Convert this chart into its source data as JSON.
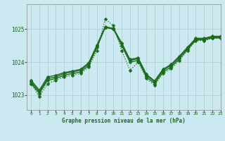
{
  "title": "Graphe pression niveau de la mer (hPa)",
  "bg_color": "#cce8f0",
  "grid_color": "#aacccc",
  "line_color": "#1a6b1a",
  "xlim": [
    -0.5,
    23
  ],
  "ylim": [
    1022.55,
    1025.75
  ],
  "yticks": [
    1023,
    1024,
    1025
  ],
  "xticks": [
    0,
    1,
    2,
    3,
    4,
    5,
    6,
    7,
    8,
    9,
    10,
    11,
    12,
    13,
    14,
    15,
    16,
    17,
    18,
    19,
    20,
    21,
    22,
    23
  ],
  "series": [
    {
      "y": [
        1023.35,
        1022.95,
        1023.35,
        1023.45,
        1023.55,
        1023.6,
        1023.65,
        1023.85,
        1024.35,
        1025.3,
        1025.1,
        1024.35,
        1023.75,
        1024.0,
        1023.5,
        1023.3,
        1023.65,
        1023.8,
        1024.05,
        1024.35,
        1024.65,
        1024.65,
        1024.72,
        1024.72
      ],
      "ls": "dotted",
      "lw": 0.9,
      "marker": "D",
      "ms": 2.5
    },
    {
      "y": [
        1023.35,
        1023.05,
        1023.45,
        1023.5,
        1023.6,
        1023.65,
        1023.7,
        1023.9,
        1024.45,
        1025.05,
        1025.0,
        1024.5,
        1024.0,
        1024.05,
        1023.55,
        1023.35,
        1023.7,
        1023.85,
        1024.1,
        1024.38,
        1024.67,
        1024.67,
        1024.73,
        1024.73
      ],
      "ls": "-",
      "lw": 1.0,
      "marker": "D",
      "ms": 2.5
    },
    {
      "y": [
        1023.4,
        1023.1,
        1023.5,
        1023.55,
        1023.65,
        1023.7,
        1023.75,
        1023.95,
        1024.5,
        1025.05,
        1025.0,
        1024.55,
        1024.05,
        1024.1,
        1023.6,
        1023.4,
        1023.75,
        1023.9,
        1024.15,
        1024.42,
        1024.7,
        1024.7,
        1024.76,
        1024.76
      ],
      "ls": "-",
      "lw": 1.0,
      "marker": "D",
      "ms": 2.5
    },
    {
      "y": [
        1023.45,
        1023.15,
        1023.55,
        1023.6,
        1023.68,
        1023.73,
        1023.78,
        1023.98,
        1024.52,
        1025.07,
        1025.02,
        1024.58,
        1024.08,
        1024.13,
        1023.63,
        1023.43,
        1023.78,
        1023.93,
        1024.18,
        1024.45,
        1024.72,
        1024.72,
        1024.78,
        1024.78
      ],
      "ls": "-",
      "lw": 1.0,
      "marker": "D",
      "ms": 2.5
    }
  ]
}
